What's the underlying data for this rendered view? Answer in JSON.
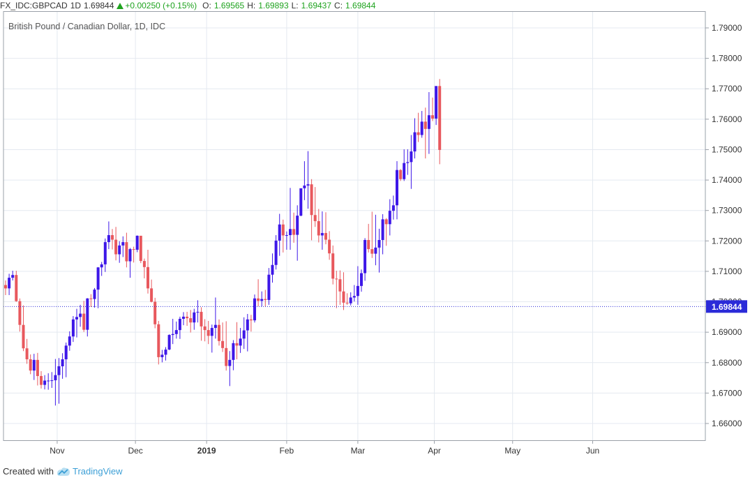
{
  "header": {
    "symbol": "FX_IDC:GBPCAD",
    "interval": "1D",
    "last": "1.69844",
    "change": "+0.00250 (+0.15%)",
    "o_label": "O:",
    "o_val": "1.69565",
    "h_label": "H:",
    "h_val": "1.69893",
    "l_label": "L:",
    "l_val": "1.69437",
    "c_label": "C:",
    "c_val": "1.69844"
  },
  "footer": {
    "created_with": "Created with",
    "brand": "TradingView"
  },
  "colors": {
    "up": "#3d17e8",
    "down": "#e8585d",
    "grid": "#e4e9f0",
    "price_line": "#2b2bd8",
    "price_badge": "#2b2bd8"
  },
  "chart_data": {
    "type": "candlestick",
    "title": "British Pound / Canadian Dollar, 1D, IDC",
    "ylim": [
      1.6545,
      1.7955
    ],
    "y_ticks": [
      "1.79000",
      "1.78000",
      "1.77000",
      "1.76000",
      "1.75000",
      "1.74000",
      "1.73000",
      "1.72000",
      "1.71000",
      "1.70000",
      "1.69000",
      "1.68000",
      "1.67000",
      "1.66000"
    ],
    "x_ticks": [
      {
        "label": "Nov",
        "index": 14.5
      },
      {
        "label": "Dec",
        "index": 36.5
      },
      {
        "label": "2019",
        "index": 56.5
      },
      {
        "label": "Feb",
        "index": 79
      },
      {
        "label": "Mar",
        "index": 99
      },
      {
        "label": "Apr",
        "index": 120.5
      },
      {
        "label": "May",
        "index": 142.5
      },
      {
        "label": "Jun",
        "index": 165
      }
    ],
    "last_price": "1.69844",
    "ohlc": [
      [
        1.7055,
        1.707,
        1.7022,
        1.7044
      ],
      [
        1.7044,
        1.7092,
        1.7022,
        1.7079
      ],
      [
        1.7079,
        1.7102,
        1.707,
        1.7088
      ],
      [
        1.7088,
        1.7102,
        1.7,
        1.7002
      ],
      [
        1.7002,
        1.7011,
        1.6902,
        1.6924
      ],
      [
        1.6924,
        1.6988,
        1.6838,
        1.6847
      ],
      [
        1.6847,
        1.6878,
        1.6796,
        1.6811
      ],
      [
        1.6811,
        1.6827,
        1.6762,
        1.6774
      ],
      [
        1.6774,
        1.6829,
        1.6743,
        1.6809
      ],
      [
        1.6809,
        1.6832,
        1.6725,
        1.6756
      ],
      [
        1.6756,
        1.6772,
        1.6715,
        1.6727
      ],
      [
        1.6727,
        1.6759,
        1.6712,
        1.6741
      ],
      [
        1.6741,
        1.6765,
        1.6711,
        1.6741
      ],
      [
        1.6741,
        1.6769,
        1.6717,
        1.6742
      ],
      [
        1.6742,
        1.6812,
        1.6659,
        1.6759
      ],
      [
        1.6759,
        1.6815,
        1.6665,
        1.6788
      ],
      [
        1.6788,
        1.6831,
        1.6747,
        1.6811
      ],
      [
        1.6811,
        1.6866,
        1.6752,
        1.6856
      ],
      [
        1.6856,
        1.6903,
        1.6839,
        1.6886
      ],
      [
        1.6886,
        1.6953,
        1.6868,
        1.6942
      ],
      [
        1.6942,
        1.6977,
        1.6883,
        1.695
      ],
      [
        1.695,
        1.699,
        1.6918,
        1.6961
      ],
      [
        1.6961,
        1.7003,
        1.6901,
        1.6908
      ],
      [
        1.6908,
        1.7012,
        1.6886,
        1.7011
      ],
      [
        1.7011,
        1.7025,
        1.6983,
        1.7009
      ],
      [
        1.7009,
        1.7045,
        1.6981,
        1.704
      ],
      [
        1.704,
        1.7114,
        1.6979,
        1.7113
      ],
      [
        1.7113,
        1.7131,
        1.7085,
        1.7123
      ],
      [
        1.7123,
        1.7208,
        1.7098,
        1.7196
      ],
      [
        1.7196,
        1.7264,
        1.7173,
        1.7219
      ],
      [
        1.7219,
        1.7239,
        1.7172,
        1.7204
      ],
      [
        1.7204,
        1.7246,
        1.7136,
        1.7156
      ],
      [
        1.7156,
        1.7199,
        1.7128,
        1.7185
      ],
      [
        1.7185,
        1.7215,
        1.7147,
        1.7196
      ],
      [
        1.7196,
        1.7227,
        1.7113,
        1.7133
      ],
      [
        1.7133,
        1.7177,
        1.7079,
        1.7173
      ],
      [
        1.7173,
        1.7181,
        1.7129,
        1.7171
      ],
      [
        1.7171,
        1.7218,
        1.7163,
        1.7217
      ],
      [
        1.7217,
        1.7211,
        1.7127,
        1.7134
      ],
      [
        1.7134,
        1.7142,
        1.7077,
        1.7114
      ],
      [
        1.7114,
        1.7171,
        1.7027,
        1.7044
      ],
      [
        1.7044,
        1.7073,
        1.6998,
        1.7
      ],
      [
        1.7,
        1.7013,
        1.6913,
        1.6926
      ],
      [
        1.6926,
        1.6937,
        1.6794,
        1.6818
      ],
      [
        1.6818,
        1.6842,
        1.6801,
        1.6826
      ],
      [
        1.6826,
        1.6851,
        1.6807,
        1.6843
      ],
      [
        1.6843,
        1.6893,
        1.6841,
        1.6891
      ],
      [
        1.6891,
        1.6944,
        1.6861,
        1.6894
      ],
      [
        1.6894,
        1.6935,
        1.6879,
        1.6907
      ],
      [
        1.6907,
        1.6951,
        1.6878,
        1.6944
      ],
      [
        1.6944,
        1.6966,
        1.6923,
        1.6951
      ],
      [
        1.6951,
        1.6967,
        1.6921,
        1.6946
      ],
      [
        1.6946,
        1.6973,
        1.6899,
        1.6932
      ],
      [
        1.6932,
        1.6977,
        1.6908,
        1.6965
      ],
      [
        1.6965,
        1.7005,
        1.6932,
        1.6967
      ],
      [
        1.6967,
        1.6982,
        1.6872,
        1.6919
      ],
      [
        1.6919,
        1.6943,
        1.687,
        1.6907
      ],
      [
        1.6907,
        1.6937,
        1.6861,
        1.6888
      ],
      [
        1.6888,
        1.6925,
        1.6833,
        1.6914
      ],
      [
        1.6914,
        1.7014,
        1.6879,
        1.6924
      ],
      [
        1.6924,
        1.6942,
        1.6856,
        1.6871
      ],
      [
        1.6871,
        1.6932,
        1.6835,
        1.6848
      ],
      [
        1.6848,
        1.6936,
        1.6774,
        1.6789
      ],
      [
        1.6789,
        1.6838,
        1.6723,
        1.6809
      ],
      [
        1.6809,
        1.6874,
        1.6775,
        1.6864
      ],
      [
        1.6864,
        1.6933,
        1.6811,
        1.6856
      ],
      [
        1.6856,
        1.6914,
        1.6832,
        1.6879
      ],
      [
        1.6879,
        1.6949,
        1.6845,
        1.6906
      ],
      [
        1.6906,
        1.696,
        1.6837,
        1.6942
      ],
      [
        1.6942,
        1.6957,
        1.6902,
        1.6939
      ],
      [
        1.6939,
        1.7024,
        1.6932,
        1.7011
      ],
      [
        1.7011,
        1.7074,
        1.6985,
        1.7003
      ],
      [
        1.7003,
        1.7034,
        1.6985,
        1.7009
      ],
      [
        1.7009,
        1.7039,
        1.6984,
        1.7006
      ],
      [
        1.7006,
        1.7111,
        1.699,
        1.7089
      ],
      [
        1.7089,
        1.7159,
        1.7063,
        1.7121
      ],
      [
        1.7121,
        1.7219,
        1.7106,
        1.7201
      ],
      [
        1.7201,
        1.7289,
        1.7151,
        1.7254
      ],
      [
        1.7254,
        1.727,
        1.7162,
        1.7218
      ],
      [
        1.7218,
        1.7231,
        1.7171,
        1.7219
      ],
      [
        1.7219,
        1.7374,
        1.7171,
        1.7239
      ],
      [
        1.7239,
        1.7293,
        1.7194,
        1.722
      ],
      [
        1.722,
        1.7317,
        1.7135,
        1.7283
      ],
      [
        1.7283,
        1.7371,
        1.7281,
        1.7373
      ],
      [
        1.7373,
        1.7462,
        1.7334,
        1.7382
      ],
      [
        1.7382,
        1.7495,
        1.7306,
        1.7386
      ],
      [
        1.7386,
        1.7403,
        1.7202,
        1.7285
      ],
      [
        1.7285,
        1.7377,
        1.7246,
        1.7265
      ],
      [
        1.7265,
        1.7305,
        1.7195,
        1.7218
      ],
      [
        1.7218,
        1.7297,
        1.7171,
        1.7226
      ],
      [
        1.7226,
        1.7294,
        1.7189,
        1.7204
      ],
      [
        1.7204,
        1.7232,
        1.7138,
        1.7159
      ],
      [
        1.7159,
        1.7185,
        1.7057,
        1.7076
      ],
      [
        1.7076,
        1.7102,
        1.6979,
        1.7074
      ],
      [
        1.7074,
        1.7103,
        1.699,
        1.7034
      ],
      [
        1.7034,
        1.7097,
        1.6973,
        1.6997
      ],
      [
        1.6997,
        1.7028,
        1.699,
        1.6995
      ],
      [
        1.6995,
        1.7031,
        1.6988,
        1.7014
      ],
      [
        1.7014,
        1.7055,
        1.7001,
        1.7019
      ],
      [
        1.7019,
        1.7117,
        1.699,
        1.7052
      ],
      [
        1.7052,
        1.7106,
        1.7033,
        1.7094
      ],
      [
        1.7094,
        1.7209,
        1.7069,
        1.7203
      ],
      [
        1.7203,
        1.7256,
        1.7162,
        1.7173
      ],
      [
        1.7173,
        1.7296,
        1.7144,
        1.7158
      ],
      [
        1.7158,
        1.7286,
        1.712,
        1.7178
      ],
      [
        1.7178,
        1.724,
        1.7096,
        1.7203
      ],
      [
        1.7203,
        1.7288,
        1.7156,
        1.7271
      ],
      [
        1.7271,
        1.7275,
        1.7184,
        1.7255
      ],
      [
        1.7255,
        1.7337,
        1.7218,
        1.7299
      ],
      [
        1.7299,
        1.7349,
        1.727,
        1.7317
      ],
      [
        1.7317,
        1.7462,
        1.7271,
        1.7433
      ],
      [
        1.7433,
        1.7436,
        1.7397,
        1.7403
      ],
      [
        1.7403,
        1.7501,
        1.7397,
        1.7456
      ],
      [
        1.7456,
        1.7501,
        1.7417,
        1.7459
      ],
      [
        1.7459,
        1.7548,
        1.7371,
        1.7494
      ],
      [
        1.7494,
        1.7603,
        1.7471,
        1.7557
      ],
      [
        1.7557,
        1.7621,
        1.7525,
        1.7548
      ],
      [
        1.7548,
        1.7627,
        1.7539,
        1.7592
      ],
      [
        1.7592,
        1.7638,
        1.7471,
        1.7568
      ],
      [
        1.7568,
        1.7689,
        1.7486,
        1.7613
      ],
      [
        1.7613,
        1.7671,
        1.7594,
        1.7602
      ],
      [
        1.7602,
        1.7708,
        1.7581,
        1.7709
      ],
      [
        1.7709,
        1.7732,
        1.7452,
        1.7499
      ]
    ]
  }
}
